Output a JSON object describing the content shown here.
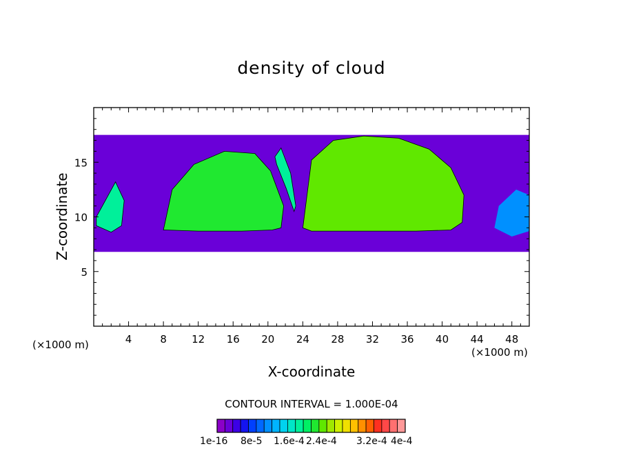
{
  "chart_data": {
    "type": "heatmap",
    "title": "density of cloud",
    "xlabel": "X-coordinate",
    "ylabel": "Z-coordinate",
    "x_unit": "(×1000 m)",
    "xlim": [
      0,
      50
    ],
    "ylim": [
      0,
      20
    ],
    "x_ticks": [
      4,
      8,
      12,
      16,
      20,
      24,
      28,
      32,
      36,
      40,
      44,
      48
    ],
    "y_ticks": [
      5,
      10,
      15
    ],
    "contour_interval_text": "CONTOUR INTERVAL = 1.000E-04",
    "colorbar": {
      "labels": [
        "1e-16",
        "8e-5",
        "1.6e-4",
        "2.4e-4",
        "3.2e-4",
        "4e-4"
      ],
      "colors": [
        "#8b00c8",
        "#6a00d8",
        "#3c00e6",
        "#1414f0",
        "#0040ff",
        "#0068ff",
        "#0090ff",
        "#00b4ff",
        "#00d2f0",
        "#00e6c8",
        "#00f09a",
        "#00f064",
        "#20e830",
        "#60e800",
        "#a0e800",
        "#d0f000",
        "#f0e000",
        "#ffc000",
        "#ff9000",
        "#ff6000",
        "#ff3020",
        "#ff4848",
        "#ff7070",
        "#ff9898"
      ]
    },
    "regions": [
      {
        "name": "cloud-layer-envelope",
        "level": 1,
        "x": [
          0,
          50,
          50,
          0
        ],
        "z": [
          6.8,
          6.8,
          17.5,
          17.5
        ]
      },
      {
        "name": "left-edge-cell",
        "level": 10,
        "x": [
          0.3,
          2.0,
          3.2,
          3.5,
          2.5,
          1.0,
          0.3
        ],
        "z": [
          9.2,
          8.6,
          9.2,
          11.5,
          13.2,
          11.0,
          10.0
        ]
      },
      {
        "name": "left-cloud-cell",
        "level": 12,
        "x": [
          8.0,
          9.0,
          11.5,
          15.0,
          18.5,
          20.3,
          21.8,
          21.5,
          20.5,
          17.0,
          12.0,
          8.2
        ],
        "z": [
          8.8,
          12.5,
          14.8,
          16.0,
          15.8,
          14.2,
          11.0,
          9.0,
          8.8,
          8.7,
          8.7,
          8.8
        ]
      },
      {
        "name": "narrow-cloud-column",
        "level": 10,
        "x": [
          20.8,
          21.5,
          22.6,
          23.2,
          23.0,
          22.1,
          21.0
        ],
        "z": [
          15.5,
          16.3,
          14.0,
          11.0,
          10.5,
          12.6,
          14.8
        ]
      },
      {
        "name": "right-cloud-cell",
        "level": 13,
        "x": [
          24.0,
          25.0,
          27.5,
          31.0,
          35.0,
          38.5,
          41.0,
          42.5,
          42.3,
          41.0,
          37.0,
          33.0,
          28.0,
          25.0,
          24.0
        ],
        "z": [
          9.0,
          15.2,
          17.0,
          17.4,
          17.2,
          16.2,
          14.5,
          12.0,
          9.5,
          8.8,
          8.7,
          8.7,
          8.7,
          8.7,
          9.0
        ]
      },
      {
        "name": "right-edge-cell",
        "level": 6,
        "x": [
          46.0,
          48.0,
          50.0,
          50.0,
          48.5,
          46.5
        ],
        "z": [
          9.0,
          8.2,
          8.7,
          12.0,
          12.5,
          11.0
        ]
      }
    ]
  }
}
